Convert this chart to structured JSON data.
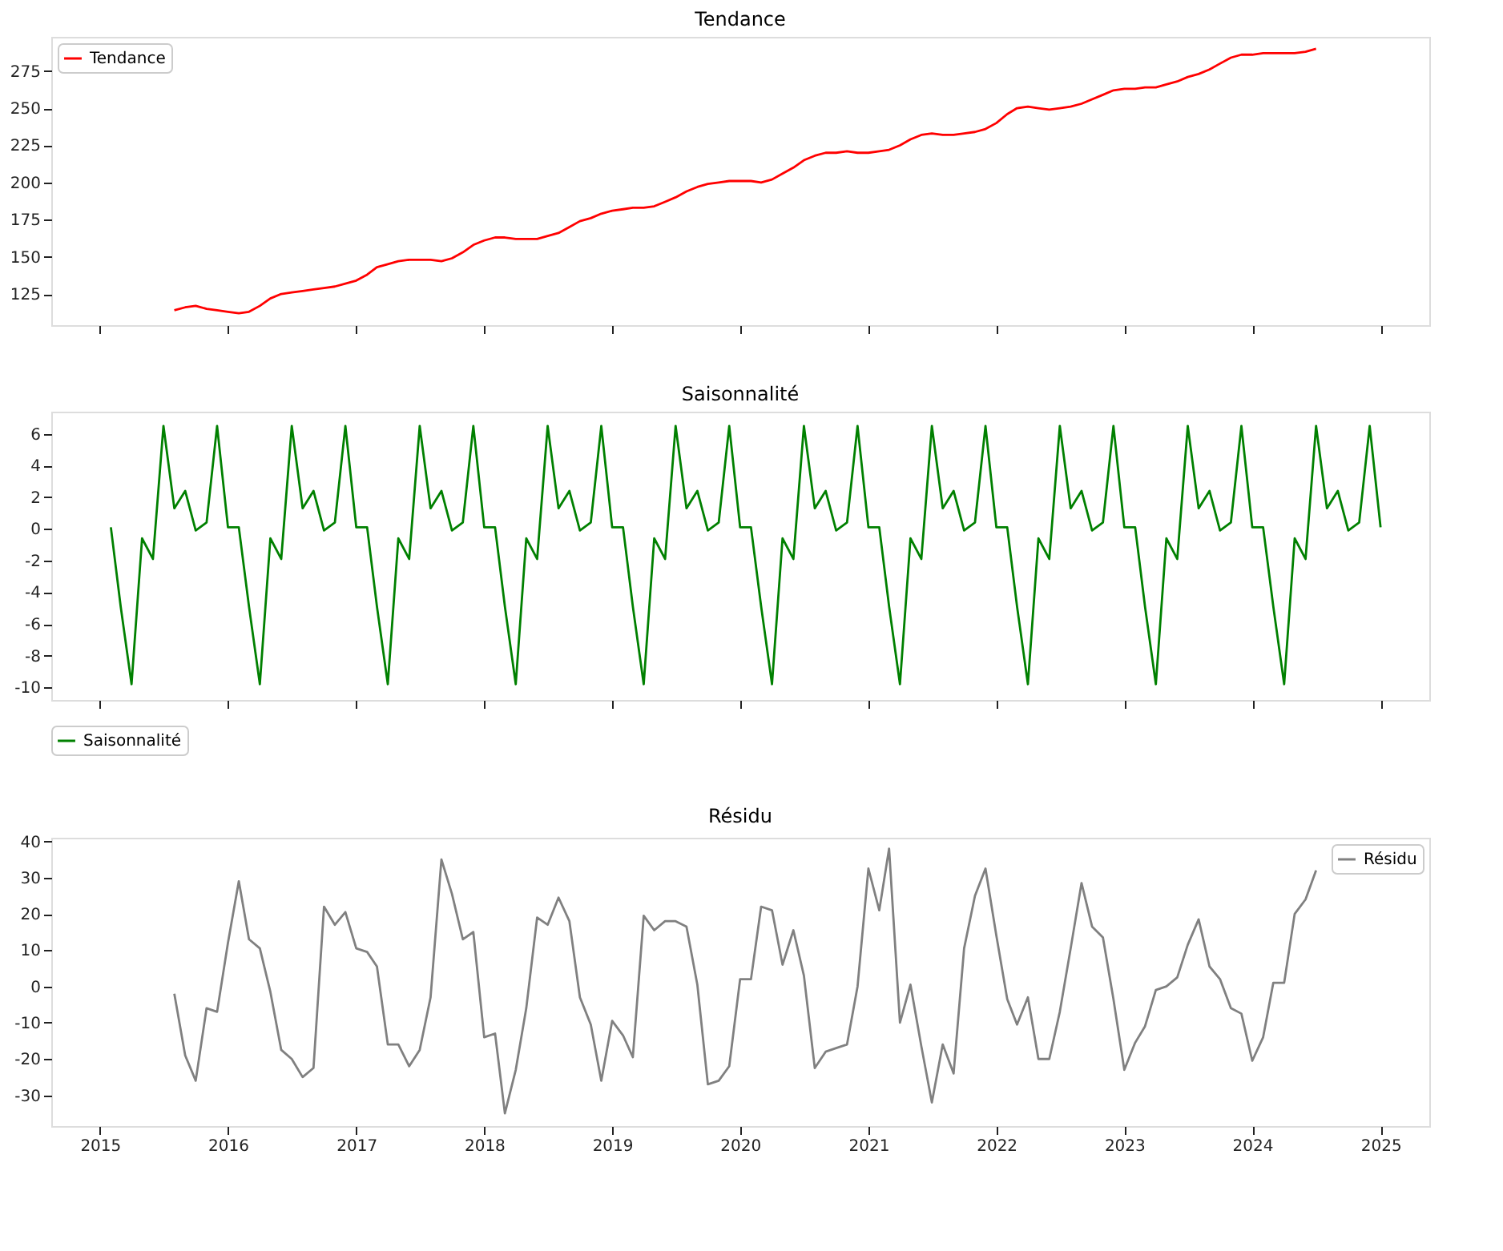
{
  "chart_data": [
    {
      "type": "line",
      "title": "Tendance",
      "legend": "top left",
      "grid": false,
      "tick_labels": "y",
      "xlim": [
        "2014-08-15",
        "2025-05-20"
      ],
      "xticks": [
        "2015",
        "2016",
        "2017",
        "2018",
        "2019",
        "2020",
        "2021",
        "2022",
        "2023",
        "2024",
        "2025"
      ],
      "ylim": [
        104,
        298
      ],
      "yticks": [
        125,
        150,
        175,
        200,
        225,
        250,
        275
      ],
      "x": [
        "2015-08",
        "2015-09",
        "2015-10",
        "2015-11",
        "2015-12",
        "2016-01",
        "2016-02",
        "2016-03",
        "2016-04",
        "2016-05",
        "2016-06",
        "2016-07",
        "2016-08",
        "2016-09",
        "2016-10",
        "2016-11",
        "2016-12",
        "2017-01",
        "2017-02",
        "2017-03",
        "2017-04",
        "2017-05",
        "2017-06",
        "2017-07",
        "2017-08",
        "2017-09",
        "2017-10",
        "2017-11",
        "2017-12",
        "2018-01",
        "2018-02",
        "2018-03",
        "2018-04",
        "2018-05",
        "2018-06",
        "2018-07",
        "2018-08",
        "2018-09",
        "2018-10",
        "2018-11",
        "2018-12",
        "2019-01",
        "2019-02",
        "2019-03",
        "2019-04",
        "2019-05",
        "2019-06",
        "2019-07",
        "2019-08",
        "2019-09",
        "2019-10",
        "2019-11",
        "2019-12",
        "2020-01",
        "2020-02",
        "2020-03",
        "2020-04",
        "2020-05",
        "2020-06",
        "2020-07",
        "2020-08",
        "2020-09",
        "2020-10",
        "2020-11",
        "2020-12",
        "2021-01",
        "2021-02",
        "2021-03",
        "2021-04",
        "2021-05",
        "2021-06",
        "2021-07",
        "2021-08",
        "2021-09",
        "2021-10",
        "2021-11",
        "2021-12",
        "2022-01",
        "2022-02",
        "2022-03",
        "2022-04",
        "2022-05",
        "2022-06",
        "2022-07",
        "2022-08",
        "2022-09",
        "2022-10",
        "2022-11",
        "2022-12",
        "2023-01",
        "2023-02",
        "2023-03",
        "2023-04",
        "2023-05",
        "2023-06",
        "2023-07",
        "2023-08",
        "2023-09",
        "2023-10",
        "2023-11",
        "2023-12",
        "2024-01",
        "2024-02",
        "2024-03",
        "2024-04",
        "2024-05",
        "2024-06",
        "2024-07"
      ],
      "series": [
        {
          "name": "Tendance",
          "color": "#ff0000",
          "values": [
            114,
            116,
            117,
            115,
            114,
            113,
            112,
            113,
            117,
            122,
            125,
            126,
            127,
            128,
            129,
            130,
            132,
            134,
            138,
            143,
            145,
            147,
            148,
            148,
            148,
            147,
            149,
            153,
            158,
            161,
            163,
            163,
            162,
            162,
            162,
            164,
            166,
            170,
            174,
            176,
            179,
            181,
            182,
            183,
            183,
            184,
            187,
            190,
            194,
            197,
            199,
            200,
            201,
            201,
            201,
            200,
            202,
            206,
            210,
            215,
            218,
            220,
            220,
            221,
            220,
            220,
            221,
            222,
            225,
            229,
            232,
            233,
            232,
            232,
            233,
            234,
            236,
            240,
            246,
            250,
            251,
            250,
            249,
            250,
            251,
            253,
            256,
            259,
            262,
            263,
            263,
            264,
            264,
            266,
            268,
            271,
            273,
            276,
            280,
            284,
            286,
            286,
            287,
            287,
            287,
            287,
            288,
            290
          ]
        }
      ]
    },
    {
      "type": "line",
      "title": "Saisonnalité",
      "legend": "bottom left",
      "grid": false,
      "tick_labels": "y",
      "xlim": [
        "2014-08-15",
        "2025-05-20"
      ],
      "xticks": [
        "2015",
        "2016",
        "2017",
        "2018",
        "2019",
        "2020",
        "2021",
        "2022",
        "2023",
        "2024",
        "2025"
      ],
      "ylim": [
        -10.8,
        7.4
      ],
      "yticks": [
        -10,
        -8,
        -6,
        -4,
        -2,
        0,
        2,
        4,
        6
      ],
      "x": [
        "2015-02",
        "2015-03",
        "2015-04",
        "2015-05",
        "2015-06",
        "2015-07",
        "2015-08",
        "2015-09",
        "2015-10",
        "2015-11",
        "2015-12",
        "2016-01",
        "2016-02",
        "2016-03",
        "2016-04",
        "2016-05",
        "2016-06",
        "2016-07",
        "2016-08",
        "2016-09",
        "2016-10",
        "2016-11",
        "2016-12",
        "2017-01",
        "2017-02",
        "2017-03",
        "2017-04",
        "2017-05",
        "2017-06",
        "2017-07",
        "2017-08",
        "2017-09",
        "2017-10",
        "2017-11",
        "2017-12",
        "2018-01",
        "2018-02",
        "2018-03",
        "2018-04",
        "2018-05",
        "2018-06",
        "2018-07",
        "2018-08",
        "2018-09",
        "2018-10",
        "2018-11",
        "2018-12",
        "2019-01",
        "2019-02",
        "2019-03",
        "2019-04",
        "2019-05",
        "2019-06",
        "2019-07",
        "2019-08",
        "2019-09",
        "2019-10",
        "2019-11",
        "2019-12",
        "2020-01",
        "2020-02",
        "2020-03",
        "2020-04",
        "2020-05",
        "2020-06",
        "2020-07",
        "2020-08",
        "2020-09",
        "2020-10",
        "2020-11",
        "2020-12",
        "2021-01",
        "2021-02",
        "2021-03",
        "2021-04",
        "2021-05",
        "2021-06",
        "2021-07",
        "2021-08",
        "2021-09",
        "2021-10",
        "2021-11",
        "2021-12",
        "2022-01",
        "2022-02",
        "2022-03",
        "2022-04",
        "2022-05",
        "2022-06",
        "2022-07",
        "2022-08",
        "2022-09",
        "2022-10",
        "2022-11",
        "2022-12",
        "2023-01",
        "2023-02",
        "2023-03",
        "2023-04",
        "2023-05",
        "2023-06",
        "2023-07",
        "2023-08",
        "2023-09",
        "2023-10",
        "2023-11",
        "2023-12",
        "2024-01",
        "2024-02",
        "2024-03",
        "2024-04",
        "2024-05",
        "2024-06",
        "2024-07",
        "2024-08",
        "2024-09",
        "2024-10",
        "2024-11",
        "2024-12",
        "2025-01"
      ],
      "series": [
        {
          "name": "Saisonnalité",
          "color": "#008000",
          "values": [
            0.1,
            -4.9,
            -9.8,
            -0.6,
            -1.9,
            6.5,
            1.3,
            2.4,
            -0.1,
            0.4,
            6.5,
            0.1,
            0.1,
            -4.9,
            -9.8,
            -0.6,
            -1.9,
            6.5,
            1.3,
            2.4,
            -0.1,
            0.4,
            6.5,
            0.1,
            0.1,
            -4.9,
            -9.8,
            -0.6,
            -1.9,
            6.5,
            1.3,
            2.4,
            -0.1,
            0.4,
            6.5,
            0.1,
            0.1,
            -4.9,
            -9.8,
            -0.6,
            -1.9,
            6.5,
            1.3,
            2.4,
            -0.1,
            0.4,
            6.5,
            0.1,
            0.1,
            -4.9,
            -9.8,
            -0.6,
            -1.9,
            6.5,
            1.3,
            2.4,
            -0.1,
            0.4,
            6.5,
            0.1,
            0.1,
            -4.9,
            -9.8,
            -0.6,
            -1.9,
            6.5,
            1.3,
            2.4,
            -0.1,
            0.4,
            6.5,
            0.1,
            0.1,
            -4.9,
            -9.8,
            -0.6,
            -1.9,
            6.5,
            1.3,
            2.4,
            -0.1,
            0.4,
            6.5,
            0.1,
            0.1,
            -4.9,
            -9.8,
            -0.6,
            -1.9,
            6.5,
            1.3,
            2.4,
            -0.1,
            0.4,
            6.5,
            0.1,
            0.1,
            -4.9,
            -9.8,
            -0.6,
            -1.9,
            6.5,
            1.3,
            2.4,
            -0.1,
            0.4,
            6.5,
            0.1,
            0.1,
            -4.9,
            -9.8,
            -0.6,
            -1.9,
            6.5,
            1.3,
            2.4,
            -0.1,
            0.4,
            6.5,
            0.1
          ]
        }
      ]
    },
    {
      "type": "line",
      "title": "Résidu",
      "legend": "top right",
      "grid": false,
      "xlim": [
        "2014-08-15",
        "2025-05-20"
      ],
      "xticks": [
        "2015",
        "2016",
        "2017",
        "2018",
        "2019",
        "2020",
        "2021",
        "2022",
        "2023",
        "2024",
        "2025"
      ],
      "ylim": [
        -38.5,
        41
      ],
      "yticks": [
        -30,
        -20,
        -10,
        0,
        10,
        20,
        30,
        40
      ],
      "x": [
        "2015-08",
        "2015-09",
        "2015-10",
        "2015-11",
        "2015-12",
        "2016-01",
        "2016-02",
        "2016-03",
        "2016-04",
        "2016-05",
        "2016-06",
        "2016-07",
        "2016-08",
        "2016-09",
        "2016-10",
        "2016-11",
        "2016-12",
        "2017-01",
        "2017-02",
        "2017-03",
        "2017-04",
        "2017-05",
        "2017-06",
        "2017-07",
        "2017-08",
        "2017-09",
        "2017-10",
        "2017-11",
        "2017-12",
        "2018-01",
        "2018-02",
        "2018-03",
        "2018-04",
        "2018-05",
        "2018-06",
        "2018-07",
        "2018-08",
        "2018-09",
        "2018-10",
        "2018-11",
        "2018-12",
        "2019-01",
        "2019-02",
        "2019-03",
        "2019-04",
        "2019-05",
        "2019-06",
        "2019-07",
        "2019-08",
        "2019-09",
        "2019-10",
        "2019-11",
        "2019-12",
        "2020-01",
        "2020-02",
        "2020-03",
        "2020-04",
        "2020-05",
        "2020-06",
        "2020-07",
        "2020-08",
        "2020-09",
        "2020-10",
        "2020-11",
        "2020-12",
        "2021-01",
        "2021-02",
        "2021-03",
        "2021-04",
        "2021-05",
        "2021-06",
        "2021-07",
        "2021-08",
        "2021-09",
        "2021-10",
        "2021-11",
        "2021-12",
        "2022-01",
        "2022-02",
        "2022-03",
        "2022-04",
        "2022-05",
        "2022-06",
        "2022-07",
        "2022-08",
        "2022-09",
        "2022-10",
        "2022-11",
        "2022-12",
        "2023-01",
        "2023-02",
        "2023-03",
        "2023-04",
        "2023-05",
        "2023-06",
        "2023-07",
        "2023-08",
        "2023-09",
        "2023-10",
        "2023-11",
        "2023-12",
        "2024-01",
        "2024-02",
        "2024-03",
        "2024-04",
        "2024-05",
        "2024-06",
        "2024-07"
      ],
      "series": [
        {
          "name": "Résidu",
          "color": "#808080",
          "values": [
            -2,
            -19,
            -26,
            -6,
            -7,
            12,
            29,
            13,
            10.5,
            -1.5,
            -17.5,
            -20,
            -25,
            -22.5,
            22,
            17,
            20.5,
            10.5,
            9.5,
            5.5,
            -16,
            -16,
            -22,
            -17.5,
            -3,
            35,
            25.5,
            13,
            15,
            -14,
            -13,
            -35,
            -23,
            -6,
            19,
            17,
            24.5,
            18,
            -3,
            -10.5,
            -26,
            -9.5,
            -13.5,
            -19.5,
            19.5,
            15.5,
            18,
            18,
            16.5,
            0.5,
            -27,
            -26,
            -22,
            2,
            2,
            22,
            21,
            6,
            15.5,
            3,
            -22.5,
            -18,
            -17,
            -16,
            0,
            32.5,
            21,
            38,
            -10,
            0.5,
            -16.5,
            -32,
            -16,
            -24,
            10.5,
            25,
            32.5,
            14,
            -3.5,
            -10.5,
            -3,
            -20,
            -20,
            -7,
            10.5,
            28.5,
            16.5,
            13.5,
            -3.5,
            -23,
            -15.5,
            -11,
            -1,
            0,
            2.5,
            11.5,
            18.5,
            5.5,
            2,
            -6,
            -7.5,
            -20.5,
            -14,
            1,
            1,
            20,
            24,
            32
          ]
        }
      ]
    }
  ]
}
